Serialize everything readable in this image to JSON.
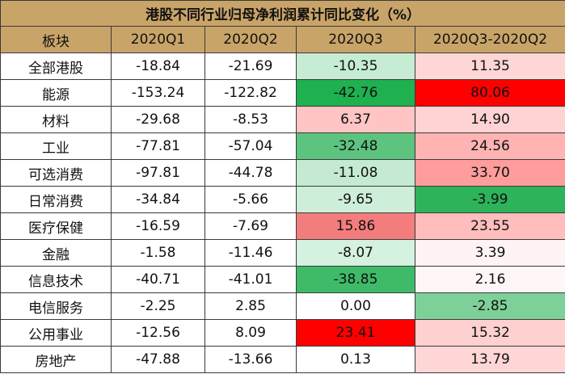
{
  "table": {
    "title": "港股不同行业归母净利润累计同比变化（%）",
    "header": [
      "板块",
      "2020Q1",
      "2020Q2",
      "2020Q3",
      "2020Q3-2020Q2"
    ],
    "rows": [
      [
        "全部港股",
        "-18.84",
        "-21.69",
        "-10.35",
        "11.35"
      ],
      [
        "能源",
        "-153.24",
        "-122.82",
        "-42.76",
        "80.06"
      ],
      [
        "材料",
        "-29.68",
        "-8.53",
        "6.37",
        "14.90"
      ],
      [
        "工业",
        "-77.81",
        "-57.04",
        "-32.48",
        "24.56"
      ],
      [
        "可选消费",
        "-97.81",
        "-44.78",
        "-11.08",
        "33.70"
      ],
      [
        "日常消费",
        "-34.84",
        "-5.66",
        "-9.65",
        "-3.99"
      ],
      [
        "医疗保健",
        "-16.59",
        "-7.69",
        "15.86",
        "23.55"
      ],
      [
        "金融",
        "-1.58",
        "-11.46",
        "-8.07",
        "3.39"
      ],
      [
        "信息技术",
        "-40.71",
        "-41.01",
        "-38.85",
        "2.16"
      ],
      [
        "电信服务",
        "-2.25",
        "2.85",
        "0.00",
        "-2.85"
      ],
      [
        "公用事业",
        "-12.56",
        "8.09",
        "23.41",
        "15.32"
      ],
      [
        "房地产",
        "-47.88",
        "-13.66",
        "0.13",
        "13.79"
      ]
    ],
    "cell_colors": [
      [
        "#ffffff",
        "#ffffff",
        "#ffffff",
        "#c6ecd3",
        "#ffd6d6"
      ],
      [
        "#ffffff",
        "#ffffff",
        "#ffffff",
        "#1fb04f",
        "#ff0000"
      ],
      [
        "#ffffff",
        "#ffffff",
        "#ffffff",
        "#ffc4c4",
        "#ffd3d3"
      ],
      [
        "#ffffff",
        "#ffffff",
        "#ffffff",
        "#5cc47f",
        "#ffb3b3"
      ],
      [
        "#ffffff",
        "#ffffff",
        "#ffffff",
        "#c4ebd1",
        "#ff9c9c"
      ],
      [
        "#ffffff",
        "#ffffff",
        "#ffffff",
        "#cdeed8",
        "#2db35a"
      ],
      [
        "#ffffff",
        "#ffffff",
        "#ffffff",
        "#f37d7d",
        "#ffbdbd"
      ],
      [
        "#ffffff",
        "#ffffff",
        "#ffffff",
        "#d5f1df",
        "#fff3f3"
      ],
      [
        "#ffffff",
        "#ffffff",
        "#ffffff",
        "#3fba68",
        "#fff7f7"
      ],
      [
        "#ffffff",
        "#ffffff",
        "#ffffff",
        "#ffffff",
        "#7dd098"
      ],
      [
        "#ffffff",
        "#ffffff",
        "#ffffff",
        "#ff0000",
        "#ffd0d0"
      ],
      [
        "#ffffff",
        "#ffffff",
        "#ffffff",
        "#ffffff",
        "#ffd6d6"
      ]
    ],
    "header_color": "#c9a468"
  }
}
